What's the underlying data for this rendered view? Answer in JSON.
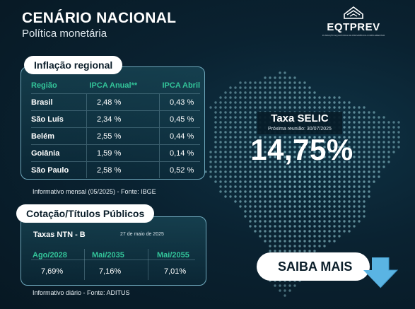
{
  "header": {
    "title": "CENÁRIO NACIONAL",
    "subtitle": "Política monetária"
  },
  "logo": {
    "text": "EQTPREV",
    "tagline": "FUNDAÇÃO EQUATORIAL DE PREVIDÊNCIA COMPLEMENTAR"
  },
  "inflation": {
    "title": "Inflação regional",
    "columns": [
      "Região",
      "IPCA Anual**",
      "IPCA Abril"
    ],
    "rows": [
      {
        "region": "Brasil",
        "annual": "2,48 %",
        "april": "0,43 %"
      },
      {
        "region": "São Luís",
        "annual": "2,34 %",
        "april": "0,45 %"
      },
      {
        "region": "Belém",
        "annual": "2,55 %",
        "april": "0,44 %"
      },
      {
        "region": "Goiânia",
        "annual": "1,59 %",
        "april": "0,14 %"
      },
      {
        "region": "São Paulo",
        "annual": "2,58 %",
        "april": "0,52 %"
      }
    ],
    "source": "Informativo mensal (05/2025) - Fonte: IBGE"
  },
  "bonds": {
    "title": "Cotação/Títulos Públicos",
    "label": "Taxas NTN - B",
    "date": "27 de maio de 2025",
    "columns": [
      "Ago/2028",
      "Mai/2035",
      "Mai/2055"
    ],
    "values": [
      "7,69%",
      "7,16%",
      "7,01%"
    ],
    "source": "Informativo diário - Fonte: ADITUS"
  },
  "selic": {
    "title": "Taxa SELIC",
    "next_meeting": "Próxima reunião: 30/07/2025",
    "rate": "14,75%"
  },
  "cta": {
    "label": "SAIBA MAIS",
    "arrow_icon": "arrow-down-icon"
  },
  "colors": {
    "accent_green": "#33c59a",
    "arrow_blue": "#5ab4e3",
    "background": "#0a2231",
    "panel_border": "#6fa9bd"
  }
}
